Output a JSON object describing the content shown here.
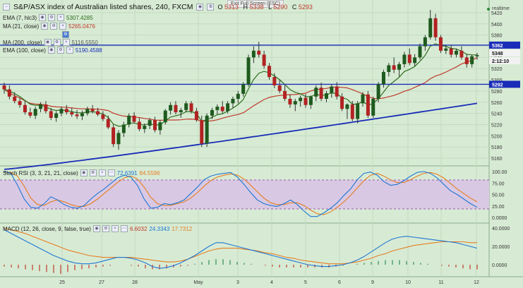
{
  "header": {
    "title": "S&P/ASX index of Australian listed shares, 240, FXCM",
    "ohlc": [
      {
        "k": "O",
        "v": "5313"
      },
      {
        "k": "H",
        "v": "5338"
      },
      {
        "k": "L",
        "v": "5290"
      },
      {
        "k": "C",
        "v": "5293"
      }
    ]
  },
  "exit_label": "Exit Full Screen (ESC)",
  "realtime_label": "realtime",
  "indicators": [
    {
      "label": "EMA (7, hlc3)",
      "value": "5307.4285",
      "color": "#2d6e1c"
    },
    {
      "label": "MA (21, close)",
      "value": "5265.0476",
      "color": "#c0392b"
    },
    {
      "label": "MA (200, close)",
      "value": "5116.5550",
      "color": "#555555"
    },
    {
      "label": "EMA (100, close)",
      "value": "5190.4588",
      "color": "#1a2db8"
    }
  ],
  "stoch": {
    "label": "Stoch RSI (3, 3, 21, 21, close)",
    "k": "72.6391",
    "d": "84.5596"
  },
  "macd": {
    "label": "MACD (12, 26, close, 9, false, true)",
    "v1": "6.6032",
    "v2": "24.3343",
    "v3": "17.7312"
  },
  "price_axis": [
    "5420",
    "5400",
    "5380",
    "5360",
    "5340",
    "5320",
    "5300",
    "5280",
    "5260",
    "5240",
    "5220",
    "5200",
    "5180",
    "5160"
  ],
  "price_tags": {
    "line_top": "5362",
    "current": "5348",
    "time": "2:12:10",
    "line_bottom": "5292"
  },
  "stoch_axis": [
    "100.00",
    "75.00",
    "50.00",
    "25.00",
    "0.0000"
  ],
  "macd_axis": [
    "40.0000",
    "20.0000",
    "0.0000"
  ],
  "x_labels": [
    "25",
    "27",
    "28",
    "May",
    "3",
    "4",
    "5",
    "6",
    "9",
    "10",
    "11",
    "12"
  ],
  "chart_data": {
    "type": "candlestick",
    "ylim": [
      5150,
      5430
    ],
    "hlines": [
      5362,
      5292
    ],
    "candles": [
      [
        5290,
        5295,
        5275,
        5283
      ],
      [
        5283,
        5290,
        5265,
        5270
      ],
      [
        5270,
        5278,
        5258,
        5262
      ],
      [
        5262,
        5268,
        5250,
        5255
      ],
      [
        5255,
        5262,
        5238,
        5242
      ],
      [
        5242,
        5250,
        5232,
        5236
      ],
      [
        5236,
        5252,
        5230,
        5248
      ],
      [
        5248,
        5260,
        5242,
        5256
      ],
      [
        5256,
        5262,
        5240,
        5244
      ],
      [
        5244,
        5250,
        5228,
        5232
      ],
      [
        5232,
        5244,
        5225,
        5240
      ],
      [
        5240,
        5252,
        5235,
        5248
      ],
      [
        5248,
        5255,
        5238,
        5242
      ],
      [
        5242,
        5250,
        5234,
        5238
      ],
      [
        5238,
        5246,
        5230,
        5235
      ],
      [
        5235,
        5245,
        5228,
        5240
      ],
      [
        5240,
        5252,
        5236,
        5248
      ],
      [
        5248,
        5255,
        5240,
        5244
      ],
      [
        5244,
        5250,
        5235,
        5238
      ],
      [
        5238,
        5244,
        5226,
        5230
      ],
      [
        5230,
        5236,
        5212,
        5215
      ],
      [
        5215,
        5220,
        5180,
        5185
      ],
      [
        5185,
        5210,
        5175,
        5205
      ],
      [
        5205,
        5225,
        5198,
        5220
      ],
      [
        5220,
        5240,
        5215,
        5236
      ],
      [
        5236,
        5242,
        5222,
        5225
      ],
      [
        5225,
        5232,
        5208,
        5212
      ],
      [
        5212,
        5222,
        5205,
        5218
      ],
      [
        5218,
        5232,
        5212,
        5228
      ],
      [
        5228,
        5234,
        5206,
        5210
      ],
      [
        5210,
        5228,
        5202,
        5224
      ],
      [
        5224,
        5248,
        5220,
        5245
      ],
      [
        5245,
        5260,
        5238,
        5255
      ],
      [
        5255,
        5262,
        5238,
        5242
      ],
      [
        5242,
        5250,
        5232,
        5246
      ],
      [
        5246,
        5262,
        5242,
        5258
      ],
      [
        5258,
        5262,
        5240,
        5244
      ],
      [
        5244,
        5250,
        5225,
        5228
      ],
      [
        5228,
        5236,
        5180,
        5186
      ],
      [
        5186,
        5240,
        5180,
        5236
      ],
      [
        5236,
        5250,
        5230,
        5246
      ],
      [
        5246,
        5256,
        5238,
        5252
      ],
      [
        5252,
        5262,
        5240,
        5244
      ],
      [
        5244,
        5262,
        5240,
        5258
      ],
      [
        5258,
        5270,
        5250,
        5266
      ],
      [
        5266,
        5280,
        5258,
        5275
      ],
      [
        5275,
        5296,
        5270,
        5292
      ],
      [
        5292,
        5345,
        5288,
        5340
      ],
      [
        5340,
        5360,
        5330,
        5352
      ],
      [
        5352,
        5368,
        5340,
        5345
      ],
      [
        5345,
        5352,
        5320,
        5325
      ],
      [
        5325,
        5330,
        5300,
        5305
      ],
      [
        5305,
        5312,
        5285,
        5290
      ],
      [
        5290,
        5300,
        5276,
        5280
      ],
      [
        5280,
        5290,
        5262,
        5266
      ],
      [
        5266,
        5274,
        5250,
        5256
      ],
      [
        5256,
        5266,
        5244,
        5262
      ],
      [
        5262,
        5272,
        5252,
        5268
      ],
      [
        5268,
        5275,
        5250,
        5255
      ],
      [
        5255,
        5272,
        5248,
        5270
      ],
      [
        5270,
        5290,
        5262,
        5286
      ],
      [
        5286,
        5295,
        5262,
        5266
      ],
      [
        5266,
        5280,
        5260,
        5276
      ],
      [
        5276,
        5292,
        5268,
        5288
      ],
      [
        5288,
        5296,
        5265,
        5270
      ],
      [
        5270,
        5276,
        5244,
        5248
      ],
      [
        5248,
        5258,
        5230,
        5256
      ],
      [
        5256,
        5262,
        5226,
        5230
      ],
      [
        5230,
        5262,
        5222,
        5258
      ],
      [
        5258,
        5278,
        5252,
        5274
      ],
      [
        5274,
        5280,
        5232,
        5236
      ],
      [
        5236,
        5270,
        5232,
        5266
      ],
      [
        5266,
        5296,
        5260,
        5292
      ],
      [
        5292,
        5318,
        5286,
        5314
      ],
      [
        5314,
        5330,
        5306,
        5326
      ],
      [
        5326,
        5340,
        5312,
        5318
      ],
      [
        5318,
        5332,
        5306,
        5328
      ],
      [
        5328,
        5350,
        5322,
        5345
      ],
      [
        5345,
        5356,
        5326,
        5330
      ],
      [
        5330,
        5346,
        5324,
        5340
      ],
      [
        5340,
        5365,
        5336,
        5360
      ],
      [
        5360,
        5380,
        5352,
        5376
      ],
      [
        5376,
        5425,
        5372,
        5410
      ],
      [
        5410,
        5418,
        5370,
        5376
      ],
      [
        5376,
        5380,
        5348,
        5352
      ],
      [
        5352,
        5362,
        5346,
        5356
      ],
      [
        5356,
        5362,
        5340,
        5345
      ],
      [
        5345,
        5356,
        5340,
        5352
      ],
      [
        5352,
        5360,
        5336,
        5340
      ],
      [
        5340,
        5346,
        5322,
        5328
      ],
      [
        5328,
        5345,
        5322,
        5342
      ],
      [
        5342,
        5348,
        5336,
        5344
      ]
    ],
    "stoch_k": [
      100,
      96,
      70,
      40,
      22,
      20,
      30,
      45,
      38,
      28,
      22,
      20,
      26,
      40,
      52,
      62,
      74,
      86,
      92,
      88,
      70,
      40,
      20,
      22,
      30,
      28,
      32,
      38,
      52,
      66,
      82,
      90,
      94,
      96,
      98,
      88,
      72,
      54,
      38,
      30,
      26,
      24,
      30,
      38,
      28,
      14,
      2,
      2,
      10,
      20,
      32,
      48,
      62,
      82,
      96,
      99,
      92,
      78,
      70,
      72,
      80,
      90,
      98,
      100,
      96,
      86,
      72,
      58,
      50,
      40,
      30,
      22
    ],
    "stoch_d": [
      98,
      98,
      90,
      68,
      42,
      28,
      26,
      34,
      38,
      34,
      28,
      24,
      24,
      30,
      40,
      52,
      64,
      76,
      86,
      90,
      84,
      66,
      44,
      30,
      26,
      26,
      30,
      34,
      42,
      54,
      68,
      80,
      88,
      92,
      95,
      92,
      84,
      70,
      56,
      42,
      32,
      28,
      28,
      32,
      32,
      26,
      16,
      8,
      6,
      12,
      22,
      34,
      48,
      64,
      80,
      92,
      96,
      90,
      82,
      76,
      76,
      82,
      90,
      96,
      98,
      94,
      86,
      74,
      62,
      52,
      42,
      34
    ],
    "macd_line": [
      38,
      34,
      30,
      26,
      22,
      18,
      14,
      10,
      7,
      4,
      2,
      1,
      1,
      2,
      4,
      6,
      8,
      8,
      7,
      5,
      2,
      -2,
      -4,
      -3,
      -1,
      2,
      6,
      10,
      15,
      20,
      24,
      24,
      22,
      20,
      18,
      16,
      14,
      12,
      10,
      8,
      6,
      4,
      2,
      0,
      -1,
      -2,
      -2,
      -1,
      0,
      2,
      5,
      9,
      14,
      19,
      24,
      28,
      30,
      31,
      30,
      29,
      28,
      27,
      26,
      25,
      24,
      22,
      20,
      18
    ],
    "macd_signal": [
      40,
      38,
      36,
      34,
      31,
      28,
      25,
      22,
      19,
      16,
      14,
      12,
      10,
      9,
      8,
      8,
      8,
      8,
      8,
      7,
      6,
      5,
      4,
      3,
      3,
      4,
      6,
      9,
      12,
      15,
      17,
      18,
      18,
      18,
      17,
      16,
      15,
      13,
      12,
      10,
      8,
      7,
      5,
      4,
      3,
      2,
      1,
      1,
      1,
      2,
      3,
      5,
      7,
      10,
      12,
      15,
      17,
      19,
      21,
      22,
      23,
      24,
      25,
      25,
      25,
      25,
      24,
      24
    ],
    "macd_hist": [
      -2,
      -3,
      -4,
      -5,
      -6,
      -7,
      -8,
      -9,
      -10,
      -8,
      -6,
      -5,
      -4,
      -3,
      -2,
      -1,
      0,
      0,
      -1,
      -2,
      -4,
      -5,
      -5,
      -4,
      -3,
      -2,
      -1,
      1,
      3,
      5,
      6,
      6,
      5,
      3,
      2,
      1,
      0,
      -1,
      -2,
      -3,
      -3,
      -3,
      -3,
      -3,
      -3,
      -3,
      -3,
      -2,
      -1,
      0,
      1,
      2,
      3,
      4,
      5,
      5,
      5,
      4,
      3,
      2,
      1,
      0,
      -1,
      -2,
      -3,
      -4,
      -5,
      -5
    ],
    "x_label_positions": [
      88,
      144,
      191,
      281,
      337,
      385,
      433,
      481,
      528,
      578,
      625,
      675
    ]
  }
}
